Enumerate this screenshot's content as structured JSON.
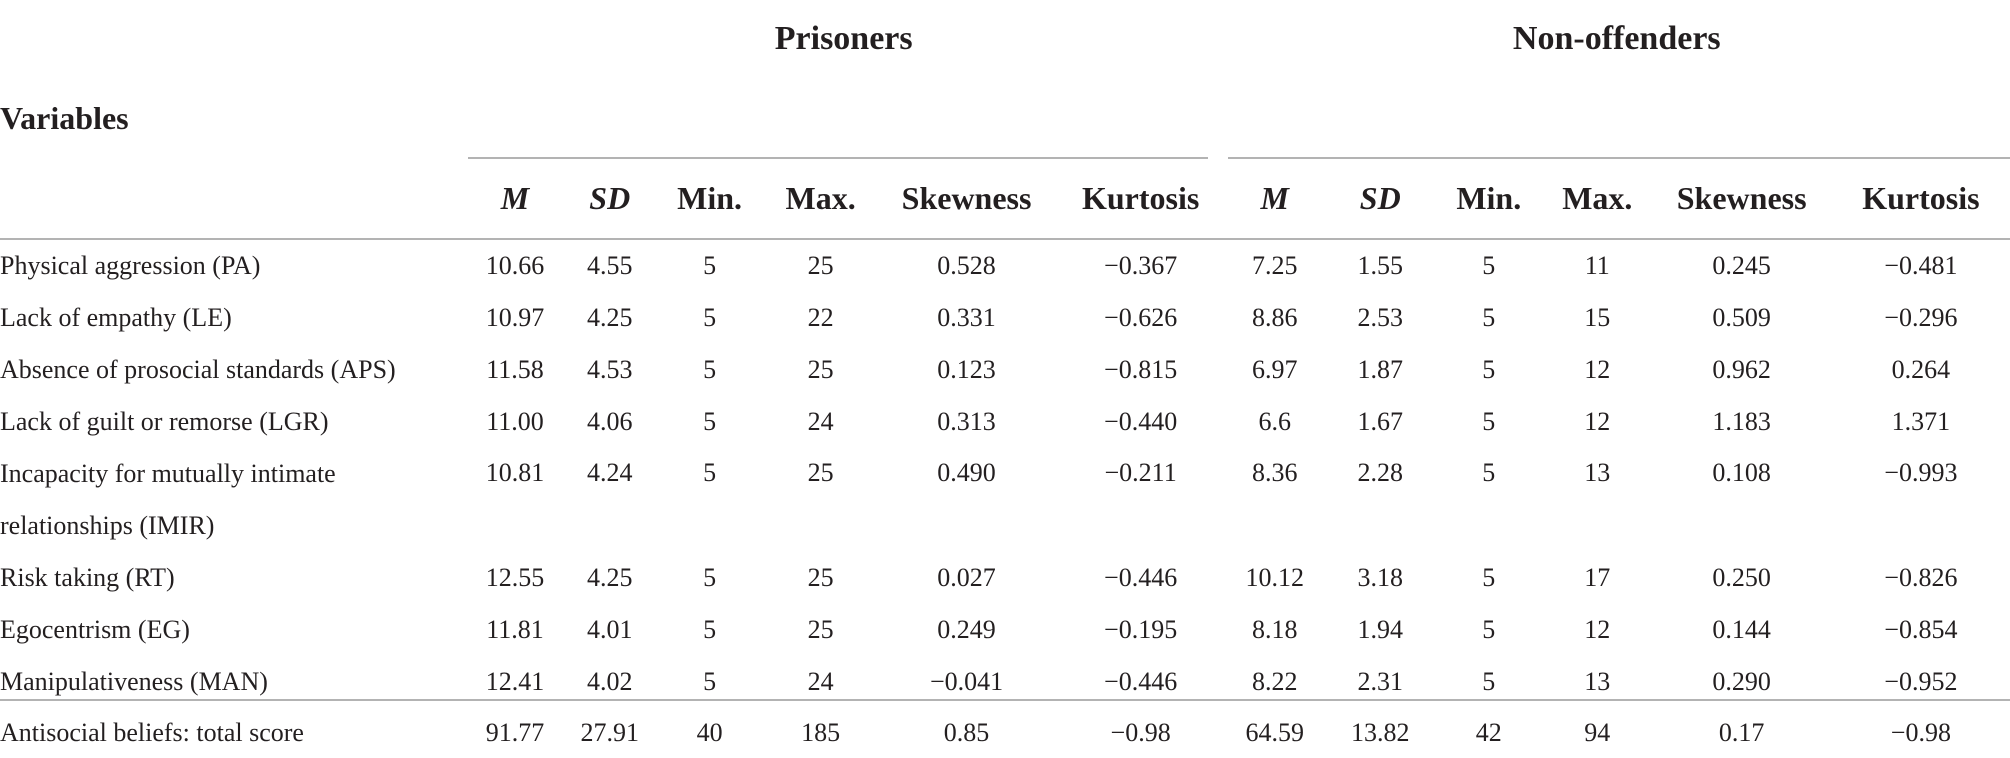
{
  "header": {
    "variables_label": "Variables",
    "group1": "Prisoners",
    "group2": "Non-offenders",
    "columns": [
      "M",
      "SD",
      "Min.",
      "Max.",
      "Skewness",
      "Kurtosis"
    ]
  },
  "rows": [
    {
      "label": "Physical aggression (PA)",
      "p": [
        "10.66",
        "4.55",
        "5",
        "25",
        "0.528",
        "−0.367"
      ],
      "n": [
        "7.25",
        "1.55",
        "5",
        "11",
        "0.245",
        "−0.481"
      ]
    },
    {
      "label": "Lack of empathy (LE)",
      "p": [
        "10.97",
        "4.25",
        "5",
        "22",
        "0.331",
        "−0.626"
      ],
      "n": [
        "8.86",
        "2.53",
        "5",
        "15",
        "0.509",
        "−0.296"
      ]
    },
    {
      "label": "Absence of prosocial standards (APS)",
      "p": [
        "11.58",
        "4.53",
        "5",
        "25",
        "0.123",
        "−0.815"
      ],
      "n": [
        "6.97",
        "1.87",
        "5",
        "12",
        "0.962",
        "0.264"
      ]
    },
    {
      "label": "Lack of guilt or remorse (LGR)",
      "p": [
        "11.00",
        "4.06",
        "5",
        "24",
        "0.313",
        "−0.440"
      ],
      "n": [
        "6.6",
        "1.67",
        "5",
        "12",
        "1.183",
        "1.371"
      ]
    },
    {
      "label_line1": "Incapacity for mutually intimate",
      "label_line2": "relationships (IMIR)",
      "p": [
        "10.81",
        "4.24",
        "5",
        "25",
        "0.490",
        "−0.211"
      ],
      "n": [
        "8.36",
        "2.28",
        "5",
        "13",
        "0.108",
        "−0.993"
      ]
    },
    {
      "label": "Risk taking (RT)",
      "p": [
        "12.55",
        "4.25",
        "5",
        "25",
        "0.027",
        "−0.446"
      ],
      "n": [
        "10.12",
        "3.18",
        "5",
        "17",
        "0.250",
        "−0.826"
      ]
    },
    {
      "label": "Egocentrism (EG)",
      "p": [
        "11.81",
        "4.01",
        "5",
        "25",
        "0.249",
        "−0.195"
      ],
      "n": [
        "8.18",
        "1.94",
        "5",
        "12",
        "0.144",
        "−0.854"
      ]
    },
    {
      "label": "Manipulativeness (MAN)",
      "p": [
        "12.41",
        "4.02",
        "5",
        "24",
        "−0.041",
        "−0.446"
      ],
      "n": [
        "8.22",
        "2.31",
        "5",
        "13",
        "0.290",
        "−0.952"
      ]
    },
    {
      "label": "Antisocial beliefs: total score",
      "p": [
        "91.77",
        "27.91",
        "40",
        "185",
        "0.85",
        "−0.98"
      ],
      "n": [
        "64.59",
        "13.82",
        "42",
        "94",
        "0.17",
        "−0.98"
      ]
    }
  ]
}
